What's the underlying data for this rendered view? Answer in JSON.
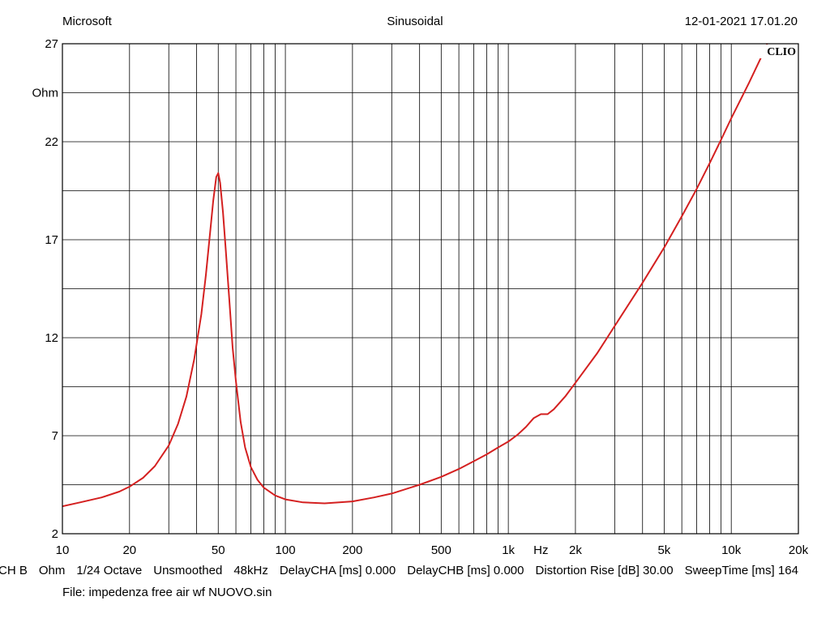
{
  "header": {
    "left": "Microsoft",
    "center": "Sinusoidal",
    "right": "12-01-2021 17.01.20"
  },
  "brand": "CLIO",
  "footer": {
    "params": [
      "CH B",
      "Ohm",
      "1/24 Octave",
      "Unsmoothed",
      "48kHz",
      "DelayCHA [ms] 0.000",
      "DelayCHB [ms] 0.000",
      "Distortion Rise [dB] 30.00",
      "SweepTime [ms] 164"
    ],
    "file": "File: impedenza free air wf NUOVO.sin"
  },
  "colors": {
    "curve": "#d42020",
    "grid": "#000000"
  },
  "chart_data": {
    "type": "line",
    "title": "Sinusoidal",
    "xlabel": "Hz",
    "ylabel": "Ohm",
    "x_scale": "log",
    "xlim": [
      10,
      20000
    ],
    "ylim": [
      2,
      27
    ],
    "grid": true,
    "x_ticks": [
      {
        "value": 10,
        "label": "10"
      },
      {
        "value": 20,
        "label": "20"
      },
      {
        "value": 50,
        "label": "50"
      },
      {
        "value": 100,
        "label": "100"
      },
      {
        "value": 200,
        "label": "200"
      },
      {
        "value": 500,
        "label": "500"
      },
      {
        "value": 1000,
        "label": "1k"
      },
      {
        "value": 2000,
        "label": "2k"
      },
      {
        "value": 5000,
        "label": "5k"
      },
      {
        "value": 10000,
        "label": "10k"
      },
      {
        "value": 20000,
        "label": "20k"
      }
    ],
    "y_ticks": [
      {
        "value": 2,
        "label": "2"
      },
      {
        "value": 7,
        "label": "7"
      },
      {
        "value": 12,
        "label": "12"
      },
      {
        "value": 17,
        "label": "17"
      },
      {
        "value": 22,
        "label": "22"
      },
      {
        "value": 27,
        "label": "27"
      }
    ],
    "series": [
      {
        "x": [
          10,
          12,
          15,
          18,
          20,
          23,
          26,
          30,
          33,
          36,
          39,
          42,
          44,
          46,
          47.5,
          49,
          50,
          51,
          52.5,
          54,
          56,
          58,
          60,
          63,
          66,
          70,
          75,
          80,
          90,
          100,
          120,
          150,
          200,
          250,
          300,
          400,
          500,
          600,
          700,
          800,
          900,
          1000,
          1100,
          1200,
          1300,
          1400,
          1500,
          1600,
          1800,
          2000,
          2500,
          3000,
          4000,
          5000,
          6000,
          7000,
          8000,
          9000,
          10000,
          12000,
          14000,
          15000
        ],
        "y": [
          3.4,
          3.6,
          3.85,
          4.15,
          4.4,
          4.85,
          5.45,
          6.5,
          7.6,
          9.0,
          10.9,
          13.2,
          15.2,
          17.4,
          19.0,
          20.2,
          20.4,
          19.9,
          18.4,
          16.5,
          14.0,
          11.5,
          9.8,
          7.7,
          6.4,
          5.4,
          4.75,
          4.35,
          3.95,
          3.75,
          3.6,
          3.55,
          3.65,
          3.85,
          4.05,
          4.5,
          4.9,
          5.3,
          5.7,
          6.05,
          6.4,
          6.7,
          7.05,
          7.45,
          7.9,
          8.1,
          8.1,
          8.35,
          9.0,
          9.7,
          11.2,
          12.6,
          14.8,
          16.6,
          18.2,
          19.6,
          20.9,
          22.1,
          23.2,
          25.0,
          26.6,
          27.4
        ]
      }
    ]
  }
}
